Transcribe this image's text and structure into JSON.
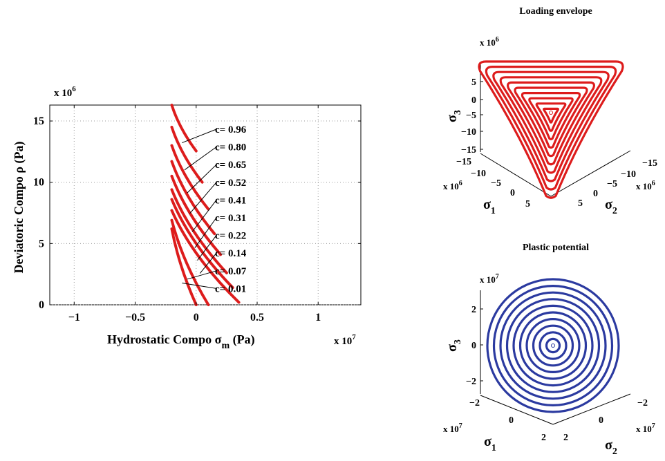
{
  "chart_data": [
    {
      "type": "line",
      "xlabel_text": "Hydrostatic Compo",
      "xlabel_symbol": "σ",
      "xlabel_sub": "m",
      "xlabel_unit": "(Pa)",
      "ylabel": "Deviatoric  Compo ρ (Pa)",
      "x_multiplier": "x 10",
      "x_multiplier_exp": "7",
      "y_multiplier": "x 10",
      "y_multiplier_exp": "6",
      "xlim": [
        -1.2,
        1.35
      ],
      "ylim": [
        0,
        16.3
      ],
      "xticks": [
        -1,
        -0.5,
        0,
        0.5,
        1
      ],
      "xtick_labels": [
        "−1",
        "−0.5",
        "0",
        "0.5",
        "1"
      ],
      "yticks": [
        0,
        5,
        10,
        15
      ],
      "ytick_labels": [
        "0",
        "5",
        "10",
        "15"
      ],
      "grid": true,
      "line_color": "#dd1c1c",
      "series": [
        {
          "name": "c= 0.96",
          "points": [
            [
              -0.2,
              16.3
            ],
            [
              0.0,
              12.55
            ]
          ]
        },
        {
          "name": "c= 0.80",
          "points": [
            [
              -0.2,
              14.5
            ],
            [
              0.05,
              10.0
            ]
          ]
        },
        {
          "name": "c= 0.65",
          "points": [
            [
              -0.2,
              13.0
            ],
            [
              0.1,
              7.8
            ]
          ]
        },
        {
          "name": "c= 0.52",
          "points": [
            [
              -0.2,
              11.7
            ],
            [
              0.15,
              5.8
            ]
          ]
        },
        {
          "name": "c= 0.41",
          "points": [
            [
              -0.2,
              10.5
            ],
            [
              0.2,
              4.1
            ]
          ]
        },
        {
          "name": "c= 0.31",
          "points": [
            [
              -0.2,
              9.4
            ],
            [
              0.25,
              2.6
            ]
          ]
        },
        {
          "name": "c= 0.22",
          "points": [
            [
              -0.2,
              8.6
            ],
            [
              0.3,
              1.4
            ]
          ]
        },
        {
          "name": "c= 0.14",
          "points": [
            [
              -0.2,
              7.7
            ],
            [
              0.35,
              0.2
            ]
          ]
        },
        {
          "name": "c= 0.07",
          "points": [
            [
              -0.2,
              6.9
            ],
            [
              0.1,
              0.0
            ]
          ]
        },
        {
          "name": "c= 0.01",
          "points": [
            [
              -0.2,
              6.2
            ],
            [
              0.0,
              0.0
            ]
          ]
        }
      ]
    },
    {
      "type": "scatter",
      "title": "Loading envelope",
      "multiplier": "x 10",
      "multiplier_exp": "6",
      "axis1": "σ",
      "axis1_sub": "1",
      "axis2": "σ",
      "axis2_sub": "2",
      "axis3": "σ",
      "axis3_sub": "3",
      "z_tick_labels": [
        "5",
        "0",
        "−5",
        "−10",
        "−15"
      ],
      "s1_tick_labels": [
        "−15",
        "−10",
        "−5",
        "0",
        "5"
      ],
      "s2_tick_labels": [
        "−15",
        "−10",
        "−5",
        "0",
        "5"
      ],
      "color": "#dd1c1c",
      "contour_count": 10
    },
    {
      "type": "scatter",
      "title": "Plastic potential",
      "multiplier": "x 10",
      "multiplier_exp": "7",
      "axis1": "σ",
      "axis1_sub": "1",
      "axis2": "σ",
      "axis2_sub": "2",
      "axis3": "σ",
      "axis3_sub": "3",
      "z_tick_labels": [
        "2",
        "0",
        "−2"
      ],
      "s1_tick_labels": [
        "−2",
        "0",
        "2"
      ],
      "s2_tick_labels": [
        "−2",
        "0",
        "2"
      ],
      "color": "#2b3aa0",
      "contour_count": 10
    }
  ]
}
